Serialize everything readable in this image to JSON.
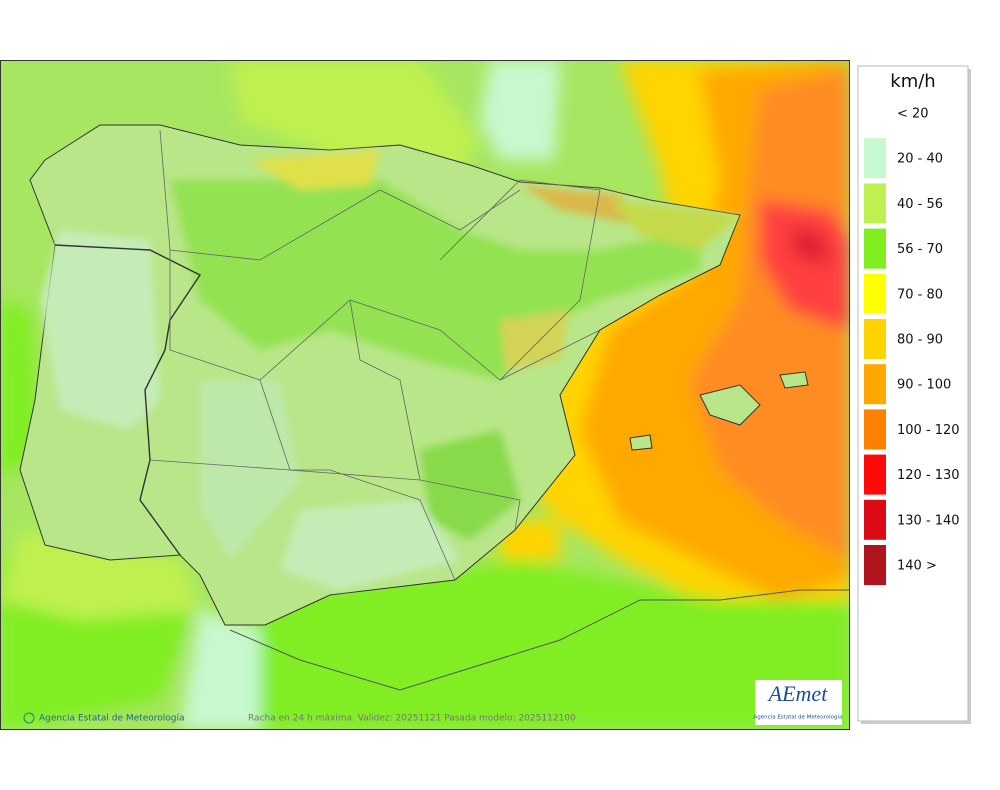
{
  "legend": {
    "title": "km/h",
    "items": [
      {
        "label": "< 20",
        "color": "#ffffff"
      },
      {
        "label": "20 - 40",
        "color": "#c8f8d0"
      },
      {
        "label": "40 - 56",
        "color": "#c0f050"
      },
      {
        "label": "56 - 70",
        "color": "#80ee20"
      },
      {
        "label": "70 - 80",
        "color": "#ffff00"
      },
      {
        "label": "80 - 90",
        "color": "#ffd400"
      },
      {
        "label": "90 - 100",
        "color": "#ffa800"
      },
      {
        "label": "100 - 120",
        "color": "#ff8000"
      },
      {
        "label": "120 - 130",
        "color": "#ff0a0a"
      },
      {
        "label": "130 - 140",
        "color": "#dc0a14"
      },
      {
        "label": "140 >",
        "color": "#b0141e"
      }
    ]
  },
  "footer": {
    "credit": "Agencia Estatal de Meteorología",
    "caption": "Racha en 24 h máxima. Validez: 20251121 Pasada modelo: 2025112100"
  },
  "logo": {
    "text": "AEmet",
    "subtitle": "Agencia Estatal de Meteorología"
  }
}
